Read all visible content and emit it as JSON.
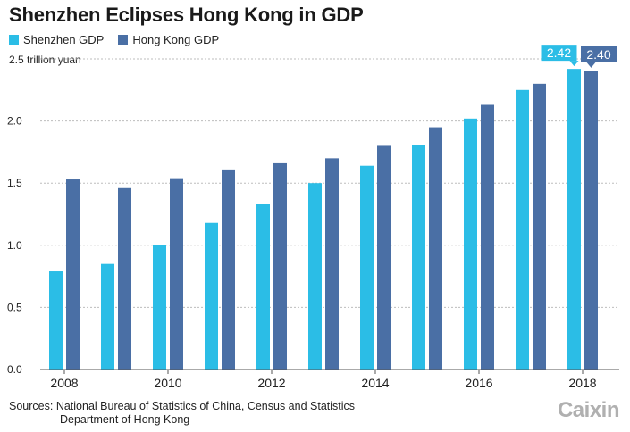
{
  "chart_data": {
    "type": "bar",
    "title": "Shenzhen Eclipses Hong Kong in GDP",
    "ylabel": "2.5 trillion yuan",
    "xlabel": "",
    "categories": [
      "2008",
      "2009",
      "2010",
      "2011",
      "2012",
      "2013",
      "2014",
      "2015",
      "2016",
      "2017",
      "2018"
    ],
    "x_tick_labels": [
      "2008",
      "2010",
      "2012",
      "2014",
      "2016",
      "2018"
    ],
    "y_ticks": [
      "0.0",
      "0.5",
      "1.0",
      "1.5",
      "2.0"
    ],
    "ylim": [
      0,
      2.5
    ],
    "series": [
      {
        "name": "Shenzhen GDP",
        "color": "#2bbde6",
        "values": [
          0.79,
          0.85,
          1.0,
          1.18,
          1.33,
          1.5,
          1.64,
          1.81,
          2.02,
          2.25,
          2.42
        ]
      },
      {
        "name": "Hong Kong GDP",
        "color": "#4a6fa5",
        "values": [
          1.53,
          1.46,
          1.54,
          1.61,
          1.66,
          1.7,
          1.8,
          1.95,
          2.13,
          2.3,
          2.4
        ]
      }
    ],
    "annotations": [
      {
        "series": 0,
        "category": "2018",
        "text": "2.42"
      },
      {
        "series": 1,
        "category": "2018",
        "text": "2.40"
      }
    ],
    "grid": true,
    "legend_position": "top-left"
  },
  "source": {
    "prefix": "Sources:",
    "line1": "National Bureau of Statistics of China, Census and Statistics",
    "line2": "Department of Hong Kong"
  },
  "logo": "Caixin"
}
